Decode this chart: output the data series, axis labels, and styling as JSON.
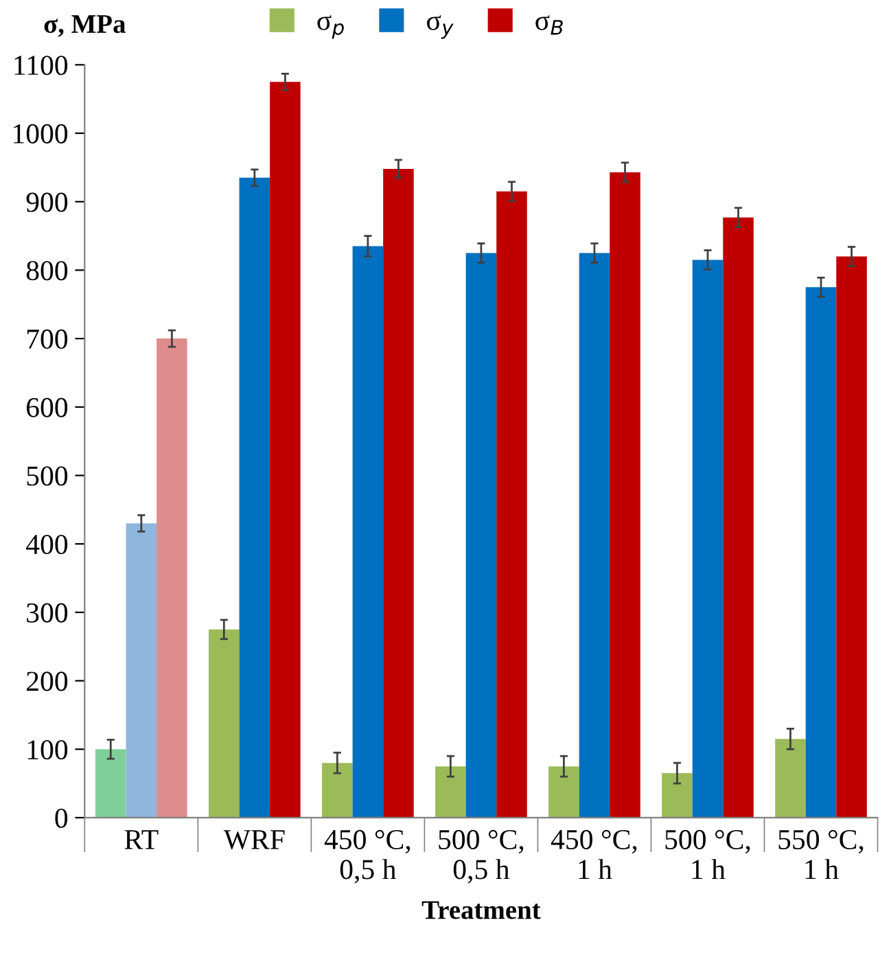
{
  "chart_data": {
    "type": "bar",
    "xlabel": "Treatment",
    "ylabel": "σ, MPa",
    "categories": [
      "RT",
      "WRF",
      "450 °C,\n0,5 h",
      "500 °C,\n0,5 h",
      "450 °C,\n1 h",
      "500 °C,\n1 h",
      "550 °C,\n1 h"
    ],
    "series": [
      {
        "name": "σ$_{p}$",
        "color": "#9bbb59",
        "colors": [
          "#7fcf9a",
          "#9bbb59",
          "#9bbb59",
          "#9bbb59",
          "#9bbb59",
          "#9bbb59",
          "#9bbb59"
        ],
        "values": [
          100,
          275,
          80,
          75,
          75,
          65,
          115
        ],
        "errors": [
          14,
          14,
          15,
          15,
          15,
          15,
          15
        ]
      },
      {
        "name": "σ$_{y}$",
        "color": "#0070c0",
        "colors": [
          "#8fb6dc",
          "#0070c0",
          "#0070c0",
          "#0070c0",
          "#0070c0",
          "#0070c0",
          "#0070c0"
        ],
        "values": [
          430,
          935,
          835,
          825,
          825,
          815,
          775
        ],
        "errors": [
          12,
          12,
          15,
          14,
          14,
          14,
          14
        ]
      },
      {
        "name": "σ$_{B}$",
        "color": "#c00000",
        "colors": [
          "#de8c8c",
          "#c00000",
          "#c00000",
          "#c00000",
          "#c00000",
          "#c00000",
          "#c00000"
        ],
        "values": [
          700,
          1075,
          948,
          915,
          943,
          877,
          820
        ],
        "errors": [
          12,
          12,
          13,
          14,
          14,
          14,
          14
        ]
      }
    ],
    "ylim": [
      0,
      1100
    ],
    "yticks": [
      0,
      100,
      200,
      300,
      400,
      500,
      600,
      700,
      800,
      900,
      1000,
      1100
    ],
    "legend": "top",
    "grid": false
  }
}
